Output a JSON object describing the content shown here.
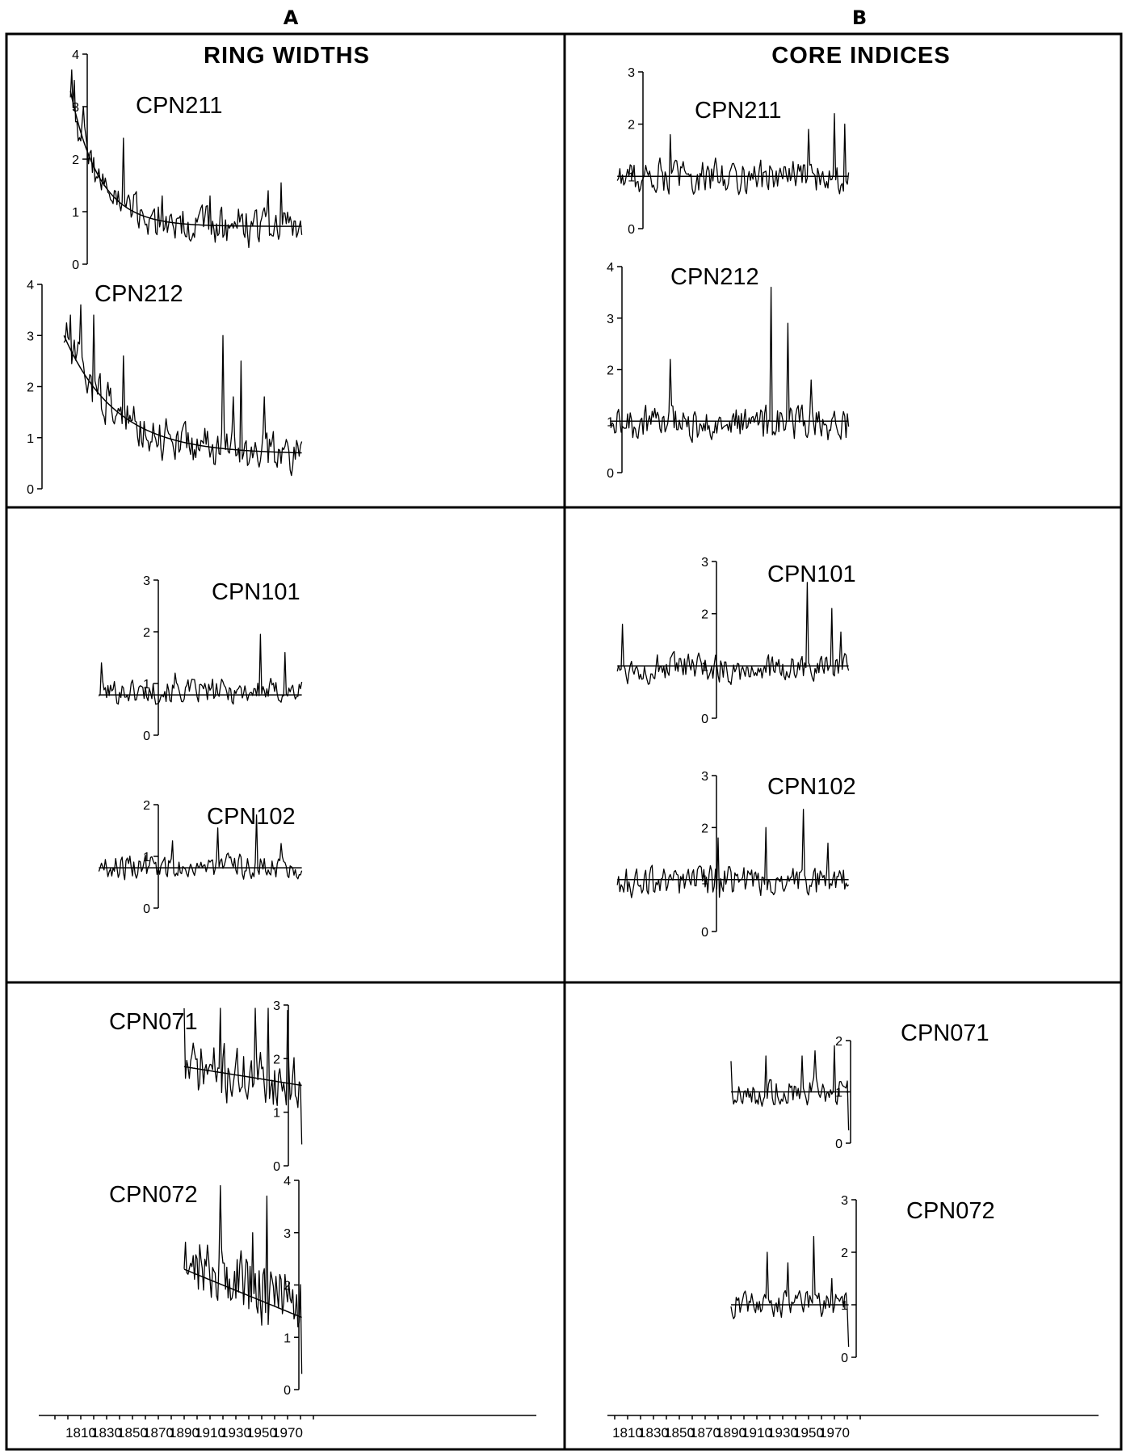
{
  "figure": {
    "column_labels": [
      "A",
      "B"
    ],
    "column_headers": [
      "RING WIDTHS",
      "CORE INDICES"
    ],
    "x_tick_labels": [
      "1810",
      "1830",
      "1850",
      "1870",
      "1890",
      "1910",
      "1930",
      "1950",
      "1970"
    ]
  },
  "chart_data": [
    {
      "type": "line",
      "column": "A",
      "label": "CPN211",
      "start_year": 1802,
      "end_year": 1981,
      "ylim": [
        0,
        4
      ],
      "yticks": [
        0,
        1,
        2,
        3,
        4
      ],
      "fit": "negative-exponential",
      "fit_start": 3.3,
      "fit_end": 0.72,
      "fit_decay_years": 22,
      "level": 0.95,
      "amplitude": 0.45,
      "seed": 211,
      "spikes": [
        [
          1803,
          3.7
        ],
        [
          1805,
          3.5
        ],
        [
          1812,
          3.0
        ],
        [
          1843,
          2.4
        ],
        [
          1873,
          1.3
        ],
        [
          1910,
          1.3
        ],
        [
          1955,
          1.4
        ],
        [
          1965,
          1.55
        ]
      ]
    },
    {
      "type": "line",
      "column": "A",
      "label": "CPN212",
      "start_year": 1797,
      "end_year": 1981,
      "ylim": [
        0,
        4
      ],
      "yticks": [
        0,
        1,
        2,
        3,
        4
      ],
      "fit": "negative-exponential",
      "fit_start": 3.0,
      "fit_end": 0.68,
      "fit_decay_years": 40,
      "level": 0.95,
      "amplitude": 0.5,
      "seed": 212,
      "spikes": [
        [
          1802,
          3.4
        ],
        [
          1810,
          3.6
        ],
        [
          1820,
          3.4
        ],
        [
          1843,
          2.6
        ],
        [
          1920,
          3.0
        ],
        [
          1928,
          1.8
        ],
        [
          1934,
          2.5
        ],
        [
          1952,
          1.8
        ]
      ]
    },
    {
      "type": "line",
      "column": "A",
      "label": "CPN101",
      "start_year": 1824,
      "end_year": 1981,
      "ylim": [
        0,
        3
      ],
      "yticks": [
        0,
        1,
        2,
        3
      ],
      "fit": "constant",
      "fit_value": 0.78,
      "level": 0.85,
      "amplitude": 0.28,
      "seed": 101,
      "spikes": [
        [
          1826,
          1.4
        ],
        [
          1883,
          1.2
        ],
        [
          1949,
          1.95
        ],
        [
          1968,
          1.6
        ]
      ]
    },
    {
      "type": "line",
      "column": "A",
      "label": "CPN102",
      "start_year": 1824,
      "end_year": 1981,
      "ylim": [
        0,
        2
      ],
      "yticks": [
        0,
        1,
        2
      ],
      "fit": "constant",
      "fit_value": 0.78,
      "level": 0.8,
      "amplitude": 0.27,
      "seed": 102,
      "spikes": [
        [
          1881,
          1.3
        ],
        [
          1916,
          1.55
        ],
        [
          1946,
          1.8
        ],
        [
          1965,
          1.25
        ]
      ]
    },
    {
      "type": "line",
      "column": "A",
      "label": "CPN071",
      "start_year": 1890,
      "end_year": 1981,
      "ylim": [
        0,
        3
      ],
      "yticks": [
        0,
        1,
        2,
        3
      ],
      "fit": "linear",
      "fit_start": 1.85,
      "fit_end": 1.5,
      "level": 1.7,
      "amplitude": 0.6,
      "seed": 71,
      "spikes": [
        [
          1890,
          3.0
        ],
        [
          1918,
          3.0
        ],
        [
          1945,
          3.0
        ],
        [
          1955,
          3.0
        ],
        [
          1970,
          2.9
        ],
        [
          1981,
          0.4
        ]
      ]
    },
    {
      "type": "line",
      "column": "A",
      "label": "CPN072",
      "start_year": 1890,
      "end_year": 1981,
      "ylim": [
        0,
        4
      ],
      "yticks": [
        0,
        1,
        2,
        3,
        4
      ],
      "fit": "linear",
      "fit_start": 2.3,
      "fit_end": 1.38,
      "level": 1.9,
      "amplitude": 0.75,
      "seed": 72,
      "spikes": [
        [
          1918,
          3.9
        ],
        [
          1943,
          3.0
        ],
        [
          1954,
          3.7
        ],
        [
          1968,
          2.2
        ],
        [
          1981,
          0.3
        ]
      ]
    },
    {
      "type": "line",
      "column": "B",
      "label": "CPN211",
      "start_year": 1802,
      "end_year": 1981,
      "ylim": [
        0,
        3
      ],
      "yticks": [
        0,
        1,
        2,
        3
      ],
      "fit": "constant",
      "fit_value": 1.0,
      "level": 1.0,
      "amplitude": 0.38,
      "seed": 311,
      "spikes": [
        [
          1843,
          1.8
        ],
        [
          1950,
          1.9
        ],
        [
          1970,
          2.2
        ],
        [
          1978,
          2.0
        ]
      ]
    },
    {
      "type": "line",
      "column": "B",
      "label": "CPN212",
      "start_year": 1797,
      "end_year": 1981,
      "ylim": [
        0,
        4
      ],
      "yticks": [
        0,
        1,
        2,
        3,
        4
      ],
      "fit": "constant",
      "fit_value": 1.0,
      "level": 0.95,
      "amplitude": 0.4,
      "seed": 312,
      "spikes": [
        [
          1843,
          2.2
        ],
        [
          1921,
          3.6
        ],
        [
          1934,
          2.9
        ],
        [
          1952,
          1.8
        ]
      ]
    },
    {
      "type": "line",
      "column": "B",
      "label": "CPN101",
      "start_year": 1802,
      "end_year": 1981,
      "ylim": [
        0,
        3
      ],
      "yticks": [
        0,
        1,
        2,
        3
      ],
      "fit": "constant",
      "fit_value": 1.0,
      "level": 0.95,
      "amplitude": 0.33,
      "seed": 401,
      "spikes": [
        [
          1806,
          1.8
        ],
        [
          1949,
          2.6
        ],
        [
          1968,
          2.1
        ],
        [
          1975,
          1.65
        ]
      ]
    },
    {
      "type": "line",
      "column": "B",
      "label": "CPN102",
      "start_year": 1802,
      "end_year": 1981,
      "ylim": [
        0,
        3
      ],
      "yticks": [
        0,
        1,
        2,
        3
      ],
      "fit": "constant",
      "fit_value": 1.0,
      "level": 0.95,
      "amplitude": 0.35,
      "seed": 402,
      "spikes": [
        [
          1880,
          1.8
        ],
        [
          1917,
          2.0
        ],
        [
          1946,
          2.35
        ],
        [
          1965,
          1.7
        ]
      ]
    },
    {
      "type": "line",
      "column": "B",
      "label": "CPN071",
      "start_year": 1890,
      "end_year": 1981,
      "ylim": [
        0,
        2
      ],
      "yticks": [
        0,
        1,
        2
      ],
      "fit": "constant",
      "fit_value": 1.0,
      "level": 1.0,
      "amplitude": 0.3,
      "seed": 471,
      "spikes": [
        [
          1890,
          1.6
        ],
        [
          1917,
          1.7
        ],
        [
          1945,
          1.7
        ],
        [
          1955,
          1.8
        ],
        [
          1970,
          1.9
        ],
        [
          1981,
          0.25
        ]
      ]
    },
    {
      "type": "line",
      "column": "B",
      "label": "CPN072",
      "start_year": 1890,
      "end_year": 1981,
      "ylim": [
        0,
        3
      ],
      "yticks": [
        0,
        1,
        2,
        3
      ],
      "fit": "constant",
      "fit_value": 1.0,
      "level": 1.0,
      "amplitude": 0.28,
      "seed": 472,
      "spikes": [
        [
          1918,
          2.0
        ],
        [
          1934,
          1.8
        ],
        [
          1954,
          2.3
        ],
        [
          1968,
          1.5
        ],
        [
          1981,
          0.2
        ]
      ]
    }
  ]
}
